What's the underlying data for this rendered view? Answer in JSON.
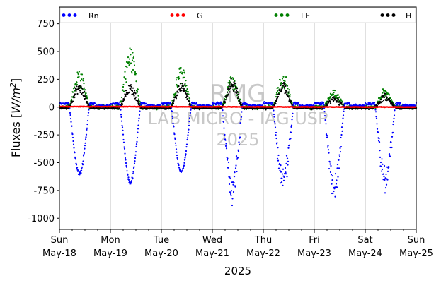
{
  "chart_data": {
    "type": "scatter",
    "xlabel": "2025",
    "ylabel_prefix": "Fluxes [",
    "ylabel_unit": "W/m",
    "ylabel_sup": "2",
    "ylabel_suffix": "]",
    "ylim": [
      -1100,
      900
    ],
    "yticks": [
      750,
      500,
      250,
      0,
      -250,
      -500,
      -750,
      -1000
    ],
    "xlim_days": [
      0,
      7
    ],
    "xticks": [
      {
        "day": "Sun",
        "date": "May-18"
      },
      {
        "day": "Mon",
        "date": "May-19"
      },
      {
        "day": "Tue",
        "date": "May-20"
      },
      {
        "day": "Wed",
        "date": "May-21"
      },
      {
        "day": "Thu",
        "date": "May-22"
      },
      {
        "day": "Fri",
        "date": "May-23"
      },
      {
        "day": "Sat",
        "date": "May-24"
      },
      {
        "day": "Sun",
        "date": "May-25"
      }
    ],
    "grid": "vertical",
    "legend_position": "top",
    "watermark": [
      "RMG",
      "LAB MICRO - IAG USP",
      "2025"
    ],
    "series": [
      {
        "name": "Rn",
        "color": "#0000ff",
        "daily_night_level": 40,
        "daily_min": [
          -600,
          -680,
          -580,
          -740,
          -660,
          -720,
          -650
        ]
      },
      {
        "name": "G",
        "color": "#ff0000",
        "start_value": 5,
        "end_value": 0
      },
      {
        "name": "LE",
        "color": "#008000",
        "daily_peak": [
          320,
          540,
          370,
          270,
          290,
          160,
          150
        ]
      },
      {
        "name": "H",
        "color": "#000000",
        "daily_peak": [
          210,
          200,
          220,
          250,
          210,
          90,
          110
        ]
      }
    ]
  }
}
